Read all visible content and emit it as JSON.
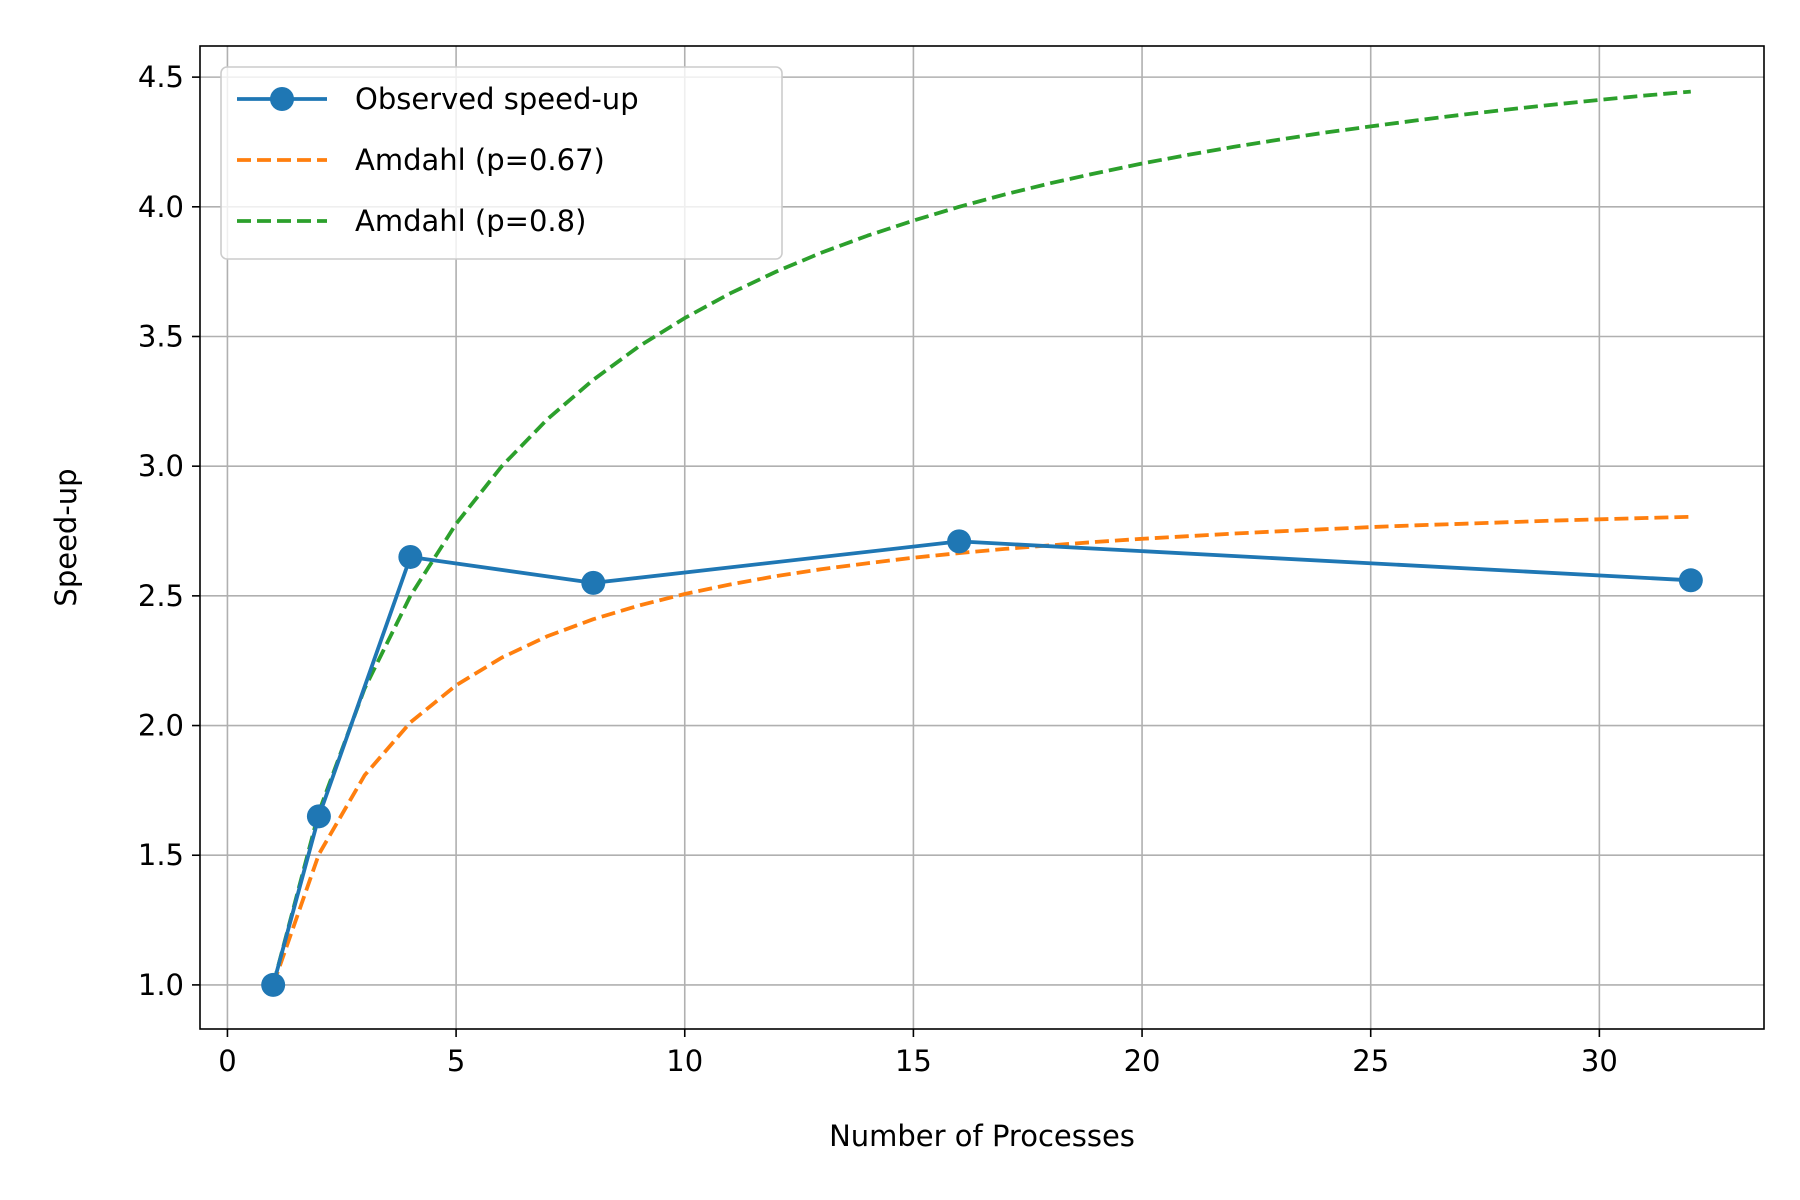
{
  "chart_data": {
    "type": "line",
    "title": "",
    "xlabel": "Number of Processes",
    "ylabel": "Speed-up",
    "xlim": [
      -0.6,
      33.6
    ],
    "ylim": [
      0.83,
      4.62
    ],
    "xticks": [
      0,
      5,
      10,
      15,
      20,
      25,
      30
    ],
    "xtick_labels": [
      "0",
      "5",
      "10",
      "15",
      "20",
      "25",
      "30"
    ],
    "yticks": [
      1.0,
      1.5,
      2.0,
      2.5,
      3.0,
      3.5,
      4.0,
      4.5
    ],
    "ytick_labels": [
      "1.0",
      "1.5",
      "2.0",
      "2.5",
      "3.0",
      "3.5",
      "4.0",
      "4.5"
    ],
    "grid": true,
    "legend_position": "upper-left",
    "series": [
      {
        "name": "Observed speed-up",
        "style": "solid-markers",
        "color": "#1f77b4",
        "x": [
          1,
          2,
          4,
          8,
          16,
          32
        ],
        "y": [
          1.0,
          1.65,
          2.65,
          2.55,
          2.71,
          2.56
        ]
      },
      {
        "name": "Amdahl (p=0.67)",
        "style": "dashed",
        "color": "#ff7f0e",
        "x": [
          1,
          2,
          3,
          4,
          5,
          6,
          7,
          8,
          9,
          10,
          11,
          12,
          13,
          14,
          15,
          16,
          17,
          18,
          19,
          20,
          21,
          22,
          23,
          24,
          25,
          26,
          27,
          28,
          29,
          30,
          31,
          32
        ],
        "y": [
          1.0,
          1.504,
          1.808,
          2.012,
          2.155,
          2.262,
          2.345,
          2.41,
          2.463,
          2.507,
          2.544,
          2.576,
          2.603,
          2.626,
          2.647,
          2.665,
          2.681,
          2.695,
          2.708,
          2.72,
          2.73,
          2.74,
          2.749,
          2.757,
          2.765,
          2.772,
          2.778,
          2.784,
          2.79,
          2.795,
          2.8,
          2.805
        ]
      },
      {
        "name": "Amdahl (p=0.8)",
        "style": "dashed",
        "color": "#2ca02c",
        "x": [
          1,
          2,
          3,
          4,
          5,
          6,
          7,
          8,
          9,
          10,
          11,
          12,
          13,
          14,
          15,
          16,
          17,
          18,
          19,
          20,
          21,
          22,
          23,
          24,
          25,
          26,
          27,
          28,
          29,
          30,
          31,
          32
        ],
        "y": [
          1.0,
          1.667,
          2.143,
          2.5,
          2.778,
          3.0,
          3.182,
          3.333,
          3.462,
          3.571,
          3.667,
          3.75,
          3.824,
          3.889,
          3.947,
          4.0,
          4.048,
          4.091,
          4.13,
          4.167,
          4.2,
          4.231,
          4.259,
          4.286,
          4.31,
          4.333,
          4.355,
          4.375,
          4.394,
          4.412,
          4.429,
          4.444
        ]
      }
    ]
  }
}
